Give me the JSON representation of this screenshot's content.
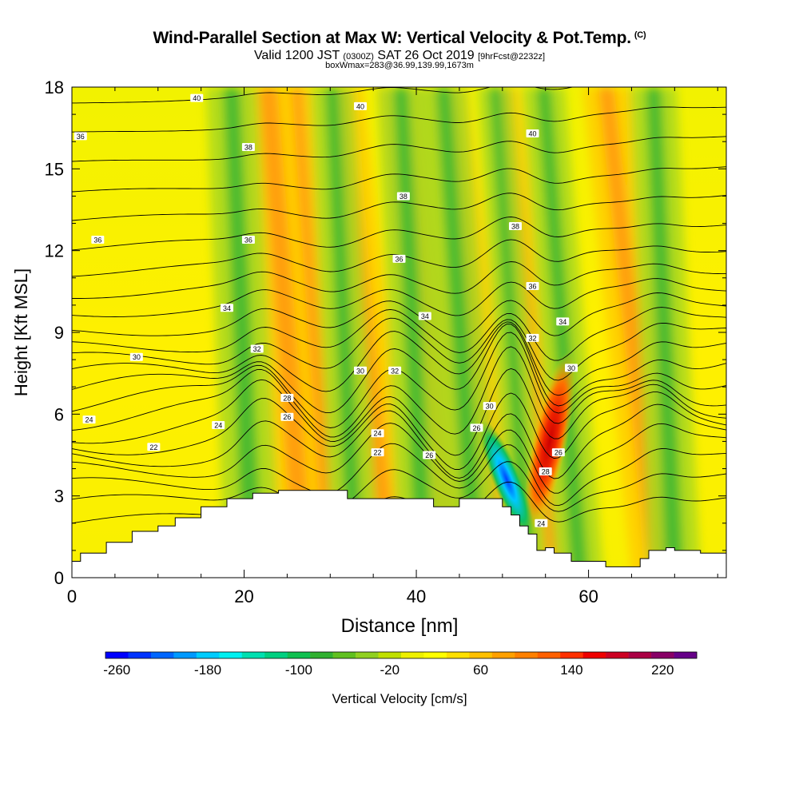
{
  "chart_data": {
    "type": "heatmap",
    "title": "Wind-Parallel Section at Max W: Vertical Velocity & Pot.Temp.",
    "title_mark": "(C)",
    "subtitle": {
      "prefix": "Valid 1200 JST",
      "zulu": "(0300Z)",
      "date": "SAT 26 Oct 2019",
      "forecast": "[9hrFcst@2232z]"
    },
    "subsubtitle": "boxWmax=283@36.99,139.99,1673m",
    "xlabel": "Distance [nm]",
    "ylabel": "Height [Kft MSL]",
    "xlim": [
      0,
      76
    ],
    "ylim": [
      0,
      18
    ],
    "xticks": [
      "0",
      "20",
      "40",
      "60"
    ],
    "xtick_values": [
      0,
      20,
      40,
      60
    ],
    "yticks": [
      "0",
      "3",
      "6",
      "9",
      "12",
      "15",
      "18"
    ],
    "ytick_values": [
      0,
      3,
      6,
      9,
      12,
      15,
      18
    ],
    "colorbar": {
      "label": "Vertical Velocity [cm/s]",
      "tick_labels": [
        "-260",
        "-180",
        "-100",
        "-20",
        "60",
        "140",
        "220"
      ],
      "tick_values": [
        -260,
        -180,
        -100,
        -20,
        60,
        140,
        220
      ],
      "range": [
        -270,
        250
      ],
      "colors": [
        "#0000ff",
        "#0033ff",
        "#0066ff",
        "#0099ff",
        "#00ccff",
        "#00f0f0",
        "#00e0b0",
        "#00d080",
        "#10c050",
        "#30b030",
        "#60c020",
        "#90d020",
        "#c0e000",
        "#eef000",
        "#ffff00",
        "#ffe000",
        "#ffc000",
        "#ffa000",
        "#ff8000",
        "#ff6000",
        "#ff3000",
        "#ee0000",
        "#cc0022",
        "#aa0044",
        "#880066",
        "#660088"
      ]
    },
    "terrain_kft": [
      [
        0,
        0.6
      ],
      [
        1,
        0.9
      ],
      [
        4,
        1.3
      ],
      [
        7,
        1.7
      ],
      [
        10,
        1.9
      ],
      [
        12,
        2.2
      ],
      [
        15,
        2.6
      ],
      [
        18,
        2.9
      ],
      [
        21,
        3.1
      ],
      [
        24,
        3.2
      ],
      [
        28,
        3.2
      ],
      [
        30,
        3.2
      ],
      [
        32,
        2.9
      ],
      [
        34,
        2.9
      ],
      [
        38,
        2.9
      ],
      [
        41,
        2.9
      ],
      [
        42,
        2.6
      ],
      [
        44,
        2.6
      ],
      [
        45,
        2.9
      ],
      [
        49,
        2.9
      ],
      [
        50,
        2.6
      ],
      [
        51,
        2.3
      ],
      [
        52,
        1.9
      ],
      [
        53,
        1.6
      ],
      [
        54,
        1.0
      ],
      [
        55,
        1.1
      ],
      [
        56,
        0.9
      ],
      [
        58,
        0.6
      ],
      [
        60,
        0.6
      ],
      [
        62,
        0.4
      ],
      [
        65,
        0.4
      ],
      [
        66,
        0.7
      ],
      [
        67,
        1.0
      ],
      [
        69,
        1.1
      ],
      [
        70,
        1.0
      ],
      [
        73,
        0.9
      ],
      [
        76,
        0.7
      ]
    ],
    "updraft_bands": [
      [
        27,
        14,
        12
      ],
      [
        30,
        8,
        11
      ],
      [
        37,
        11,
        16
      ],
      [
        44,
        12,
        17
      ],
      [
        50,
        10,
        18
      ],
      [
        56,
        7,
        16
      ],
      [
        68,
        12,
        17
      ]
    ],
    "downdraft_bands": [
      [
        21,
        13,
        7
      ],
      [
        33,
        11,
        8
      ],
      [
        41,
        12,
        8
      ],
      [
        47,
        12,
        11
      ],
      [
        53,
        9,
        11
      ],
      [
        59,
        11,
        12
      ],
      [
        70,
        12,
        7
      ]
    ],
    "strong_updraft": {
      "x": 55.5,
      "z": 5.0,
      "max_cms": 283
    },
    "strong_downdraft": {
      "x": 50.5,
      "z": 3.6,
      "min_cms": -200
    },
    "isentropes": [
      {
        "base": 2.0,
        "amp": 0.9
      },
      {
        "base": 2.7,
        "amp": 1.1
      },
      {
        "base": 3.3,
        "amp": 1.4
      },
      {
        "base": 3.9,
        "amp": 1.6
      },
      {
        "base": 4.4,
        "amp": 1.8
      },
      {
        "base": 4.9,
        "amp": 1.9
      },
      {
        "base": 5.4,
        "amp": 2.0
      },
      {
        "base": 5.9,
        "amp": 2.0
      },
      {
        "base": 6.4,
        "amp": 1.9
      },
      {
        "base": 6.9,
        "amp": 1.8
      },
      {
        "base": 7.4,
        "amp": 1.6
      },
      {
        "base": 7.9,
        "amp": 1.4
      },
      {
        "base": 8.4,
        "amp": 1.2
      },
      {
        "base": 9.0,
        "amp": 1.0
      },
      {
        "base": 9.7,
        "amp": 0.8
      },
      {
        "base": 10.4,
        "amp": 0.7
      },
      {
        "base": 11.2,
        "amp": 0.6
      },
      {
        "base": 12.1,
        "amp": 0.5
      },
      {
        "base": 13.1,
        "amp": 0.4
      },
      {
        "base": 14.1,
        "amp": 0.35
      },
      {
        "base": 15.2,
        "amp": 0.3
      },
      {
        "base": 16.3,
        "amp": 0.25
      },
      {
        "base": 17.4,
        "amp": 0.2
      }
    ],
    "contour_labels": [
      {
        "text": "40",
        "x": 14.5,
        "z": 17.6
      },
      {
        "text": "40",
        "x": 33.5,
        "z": 17.3
      },
      {
        "text": "40",
        "x": 53.5,
        "z": 16.3
      },
      {
        "text": "36",
        "x": 1.0,
        "z": 16.2
      },
      {
        "text": "38",
        "x": 20.5,
        "z": 15.8
      },
      {
        "text": "38",
        "x": 38.5,
        "z": 14.0
      },
      {
        "text": "38",
        "x": 51.5,
        "z": 12.9
      },
      {
        "text": "36",
        "x": 3.0,
        "z": 12.4
      },
      {
        "text": "36",
        "x": 20.5,
        "z": 12.4
      },
      {
        "text": "36",
        "x": 38.0,
        "z": 11.7
      },
      {
        "text": "36",
        "x": 53.5,
        "z": 10.7
      },
      {
        "text": "34",
        "x": 18.0,
        "z": 9.9
      },
      {
        "text": "34",
        "x": 41.0,
        "z": 9.6
      },
      {
        "text": "34",
        "x": 57.0,
        "z": 9.4
      },
      {
        "text": "32",
        "x": 21.5,
        "z": 8.4
      },
      {
        "text": "32",
        "x": 53.5,
        "z": 8.8
      },
      {
        "text": "32",
        "x": 37.5,
        "z": 7.6
      },
      {
        "text": "30",
        "x": 7.5,
        "z": 8.1
      },
      {
        "text": "30",
        "x": 33.5,
        "z": 7.6
      },
      {
        "text": "30",
        "x": 48.5,
        "z": 6.3
      },
      {
        "text": "30",
        "x": 58.0,
        "z": 7.7
      },
      {
        "text": "28",
        "x": 25.0,
        "z": 6.6
      },
      {
        "text": "26",
        "x": 25.0,
        "z": 5.9
      },
      {
        "text": "26",
        "x": 47.0,
        "z": 5.5
      },
      {
        "text": "24",
        "x": 2.0,
        "z": 5.8
      },
      {
        "text": "24",
        "x": 17.0,
        "z": 5.6
      },
      {
        "text": "24",
        "x": 35.5,
        "z": 5.3
      },
      {
        "text": "22",
        "x": 9.5,
        "z": 4.8
      },
      {
        "text": "22",
        "x": 35.5,
        "z": 4.6
      },
      {
        "text": "26",
        "x": 41.5,
        "z": 4.5
      },
      {
        "text": "28",
        "x": 55.0,
        "z": 3.9
      },
      {
        "text": "26",
        "x": 56.5,
        "z": 4.6
      },
      {
        "text": "24",
        "x": 54.5,
        "z": 2.0
      }
    ]
  }
}
